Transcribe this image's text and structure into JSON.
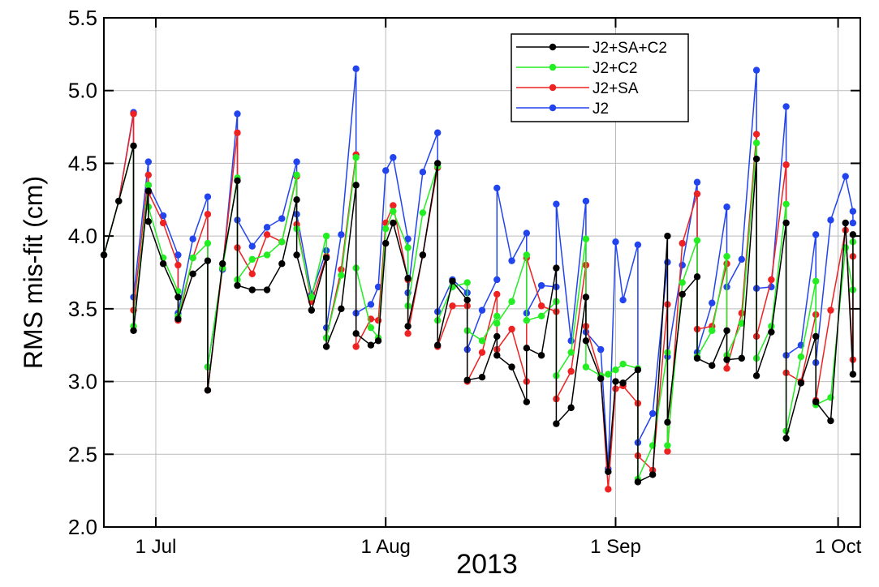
{
  "chart_data": {
    "type": "line",
    "ylabel": "RMS mis-fit (cm)",
    "xlabel": "2013",
    "xlim": [
      "2013-06-24",
      "2013-10-04"
    ],
    "xticks": [
      {
        "value": "2013-07-01",
        "label": "1 Jul"
      },
      {
        "value": "2013-08-01",
        "label": "1 Aug"
      },
      {
        "value": "2013-09-01",
        "label": "1 Sep"
      },
      {
        "value": "2013-10-01",
        "label": "1 Oct"
      }
    ],
    "ylim": [
      2,
      5.5
    ],
    "yticks": [
      {
        "value": 2,
        "label": "2.0"
      },
      {
        "value": 2.5,
        "label": "2.5"
      },
      {
        "value": 3,
        "label": "3.0"
      },
      {
        "value": 3.5,
        "label": "3.5"
      },
      {
        "value": 4,
        "label": "4.0"
      },
      {
        "value": 4.5,
        "label": "4.5"
      },
      {
        "value": 5,
        "label": "5.0"
      },
      {
        "value": 5.5,
        "label": "5.5"
      }
    ],
    "grid": true,
    "legend": "top-right",
    "x": [
      "2013-06-24",
      "2013-06-26",
      "2013-06-28",
      "2013-06-28",
      "2013-06-30",
      "2013-06-30",
      "2013-07-02",
      "2013-07-04",
      "2013-07-04",
      "2013-07-06",
      "2013-07-08",
      "2013-07-08",
      "2013-07-10",
      "2013-07-12",
      "2013-07-12",
      "2013-07-14",
      "2013-07-16",
      "2013-07-18",
      "2013-07-20",
      "2013-07-20",
      "2013-07-22",
      "2013-07-24",
      "2013-07-24",
      "2013-07-26",
      "2013-07-28",
      "2013-07-28",
      "2013-07-30",
      "2013-07-31",
      "2013-08-01",
      "2013-08-02",
      "2013-08-04",
      "2013-08-04",
      "2013-08-06",
      "2013-08-08",
      "2013-08-08",
      "2013-08-10",
      "2013-08-12",
      "2013-08-12",
      "2013-08-14",
      "2013-08-16",
      "2013-08-16",
      "2013-08-18",
      "2013-08-20",
      "2013-08-20",
      "2013-08-22",
      "2013-08-24",
      "2013-08-24",
      "2013-08-26",
      "2013-08-28",
      "2013-08-28",
      "2013-08-30",
      "2013-08-31",
      "2013-09-01",
      "2013-09-02",
      "2013-09-04",
      "2013-09-04",
      "2013-09-06",
      "2013-09-08",
      "2013-09-08",
      "2013-09-10",
      "2013-09-12",
      "2013-09-12",
      "2013-09-14",
      "2013-09-16",
      "2013-09-16",
      "2013-09-18",
      "2013-09-20",
      "2013-09-20",
      "2013-09-22",
      "2013-09-24",
      "2013-09-24",
      "2013-09-26",
      "2013-09-28",
      "2013-09-28",
      "2013-09-30",
      "2013-10-02",
      "2013-10-03",
      "2013-10-03"
    ],
    "series": [
      {
        "name": "J2+SA+C2",
        "color": "#000000",
        "values": [
          3.87,
          4.24,
          4.62,
          3.35,
          4.31,
          4.1,
          3.81,
          3.58,
          3.43,
          3.74,
          3.83,
          2.94,
          3.81,
          4.38,
          3.66,
          3.63,
          3.63,
          3.81,
          4.25,
          3.87,
          3.49,
          3.85,
          3.24,
          3.5,
          4.35,
          3.33,
          3.25,
          3.28,
          3.95,
          4.09,
          3.71,
          3.38,
          3.87,
          4.5,
          3.25,
          3.69,
          3.56,
          3.01,
          3.03,
          3.31,
          3.18,
          3.1,
          2.86,
          3.23,
          3.18,
          3.78,
          2.71,
          2.82,
          3.58,
          3.28,
          3.02,
          2.38,
          3.0,
          2.99,
          3.08,
          2.31,
          2.36,
          4.0,
          2.72,
          3.6,
          3.72,
          3.16,
          3.11,
          3.35,
          3.15,
          3.16,
          4.53,
          3.04,
          3.34,
          4.09,
          2.61,
          2.99,
          3.31,
          2.86,
          2.73,
          4.09,
          3.05,
          4.01
        ]
      },
      {
        "name": "J2+C2",
        "color": "#22ee22",
        "values": [
          3.87,
          4.24,
          4.62,
          3.38,
          4.35,
          4.2,
          3.85,
          3.62,
          3.45,
          3.85,
          3.95,
          3.1,
          3.78,
          4.4,
          3.7,
          3.84,
          3.87,
          3.96,
          4.42,
          4.05,
          3.58,
          4.0,
          3.3,
          3.73,
          4.54,
          3.78,
          3.37,
          3.3,
          4.05,
          4.17,
          3.92,
          3.52,
          4.16,
          4.48,
          3.42,
          3.65,
          3.68,
          3.35,
          3.28,
          3.45,
          3.4,
          3.55,
          3.87,
          3.42,
          3.45,
          3.55,
          3.04,
          3.2,
          3.98,
          3.1,
          3.04,
          3.05,
          3.08,
          3.12,
          3.09,
          2.33,
          2.56,
          3.2,
          2.56,
          3.68,
          3.97,
          3.17,
          3.35,
          3.86,
          3.18,
          3.4,
          4.64,
          3.16,
          3.38,
          4.22,
          2.66,
          3.17,
          3.69,
          2.84,
          2.89,
          3.92,
          3.63,
          3.96
        ]
      },
      {
        "name": "J2+SA",
        "color": "#ee2222",
        "values": [
          3.87,
          4.24,
          4.84,
          3.49,
          4.42,
          4.3,
          4.09,
          3.8,
          3.42,
          3.85,
          4.15,
          2.94,
          3.78,
          4.71,
          3.92,
          3.74,
          4.01,
          3.96,
          4.41,
          4.08,
          3.55,
          3.86,
          3.3,
          3.77,
          4.56,
          3.24,
          3.43,
          3.42,
          4.09,
          4.21,
          3.7,
          3.33,
          3.87,
          4.47,
          3.24,
          3.52,
          3.52,
          3.0,
          3.2,
          3.6,
          3.22,
          3.36,
          3.0,
          3.85,
          3.52,
          3.48,
          2.88,
          3.07,
          3.8,
          3.38,
          3.04,
          2.26,
          2.95,
          2.97,
          2.85,
          2.49,
          2.39,
          3.53,
          2.52,
          3.95,
          4.29,
          3.36,
          3.38,
          3.81,
          3.09,
          3.47,
          4.7,
          3.31,
          3.7,
          4.49,
          3.06,
          3.0,
          3.46,
          2.87,
          3.49,
          4.04,
          3.15,
          3.86
        ]
      },
      {
        "name": "J2",
        "color": "#2244ee",
        "values": [
          3.87,
          4.24,
          4.85,
          3.58,
          4.51,
          4.35,
          4.14,
          3.87,
          3.47,
          3.98,
          4.27,
          3.1,
          3.77,
          4.84,
          4.11,
          3.93,
          4.06,
          4.12,
          4.51,
          4.15,
          3.6,
          3.9,
          3.37,
          4.01,
          5.15,
          3.47,
          3.53,
          3.65,
          4.45,
          4.54,
          3.98,
          3.61,
          4.44,
          4.71,
          3.48,
          3.7,
          3.61,
          3.22,
          3.49,
          3.7,
          4.33,
          3.83,
          4.02,
          3.47,
          3.66,
          3.65,
          4.22,
          3.28,
          4.24,
          3.34,
          3.22,
          2.4,
          3.96,
          3.56,
          3.94,
          2.58,
          2.78,
          3.82,
          3.17,
          3.8,
          4.37,
          3.2,
          3.54,
          4.2,
          3.65,
          3.84,
          5.14,
          3.64,
          3.65,
          4.89,
          3.18,
          3.25,
          4.01,
          3.13,
          4.11,
          4.41,
          4.17,
          4.09
        ]
      }
    ]
  }
}
